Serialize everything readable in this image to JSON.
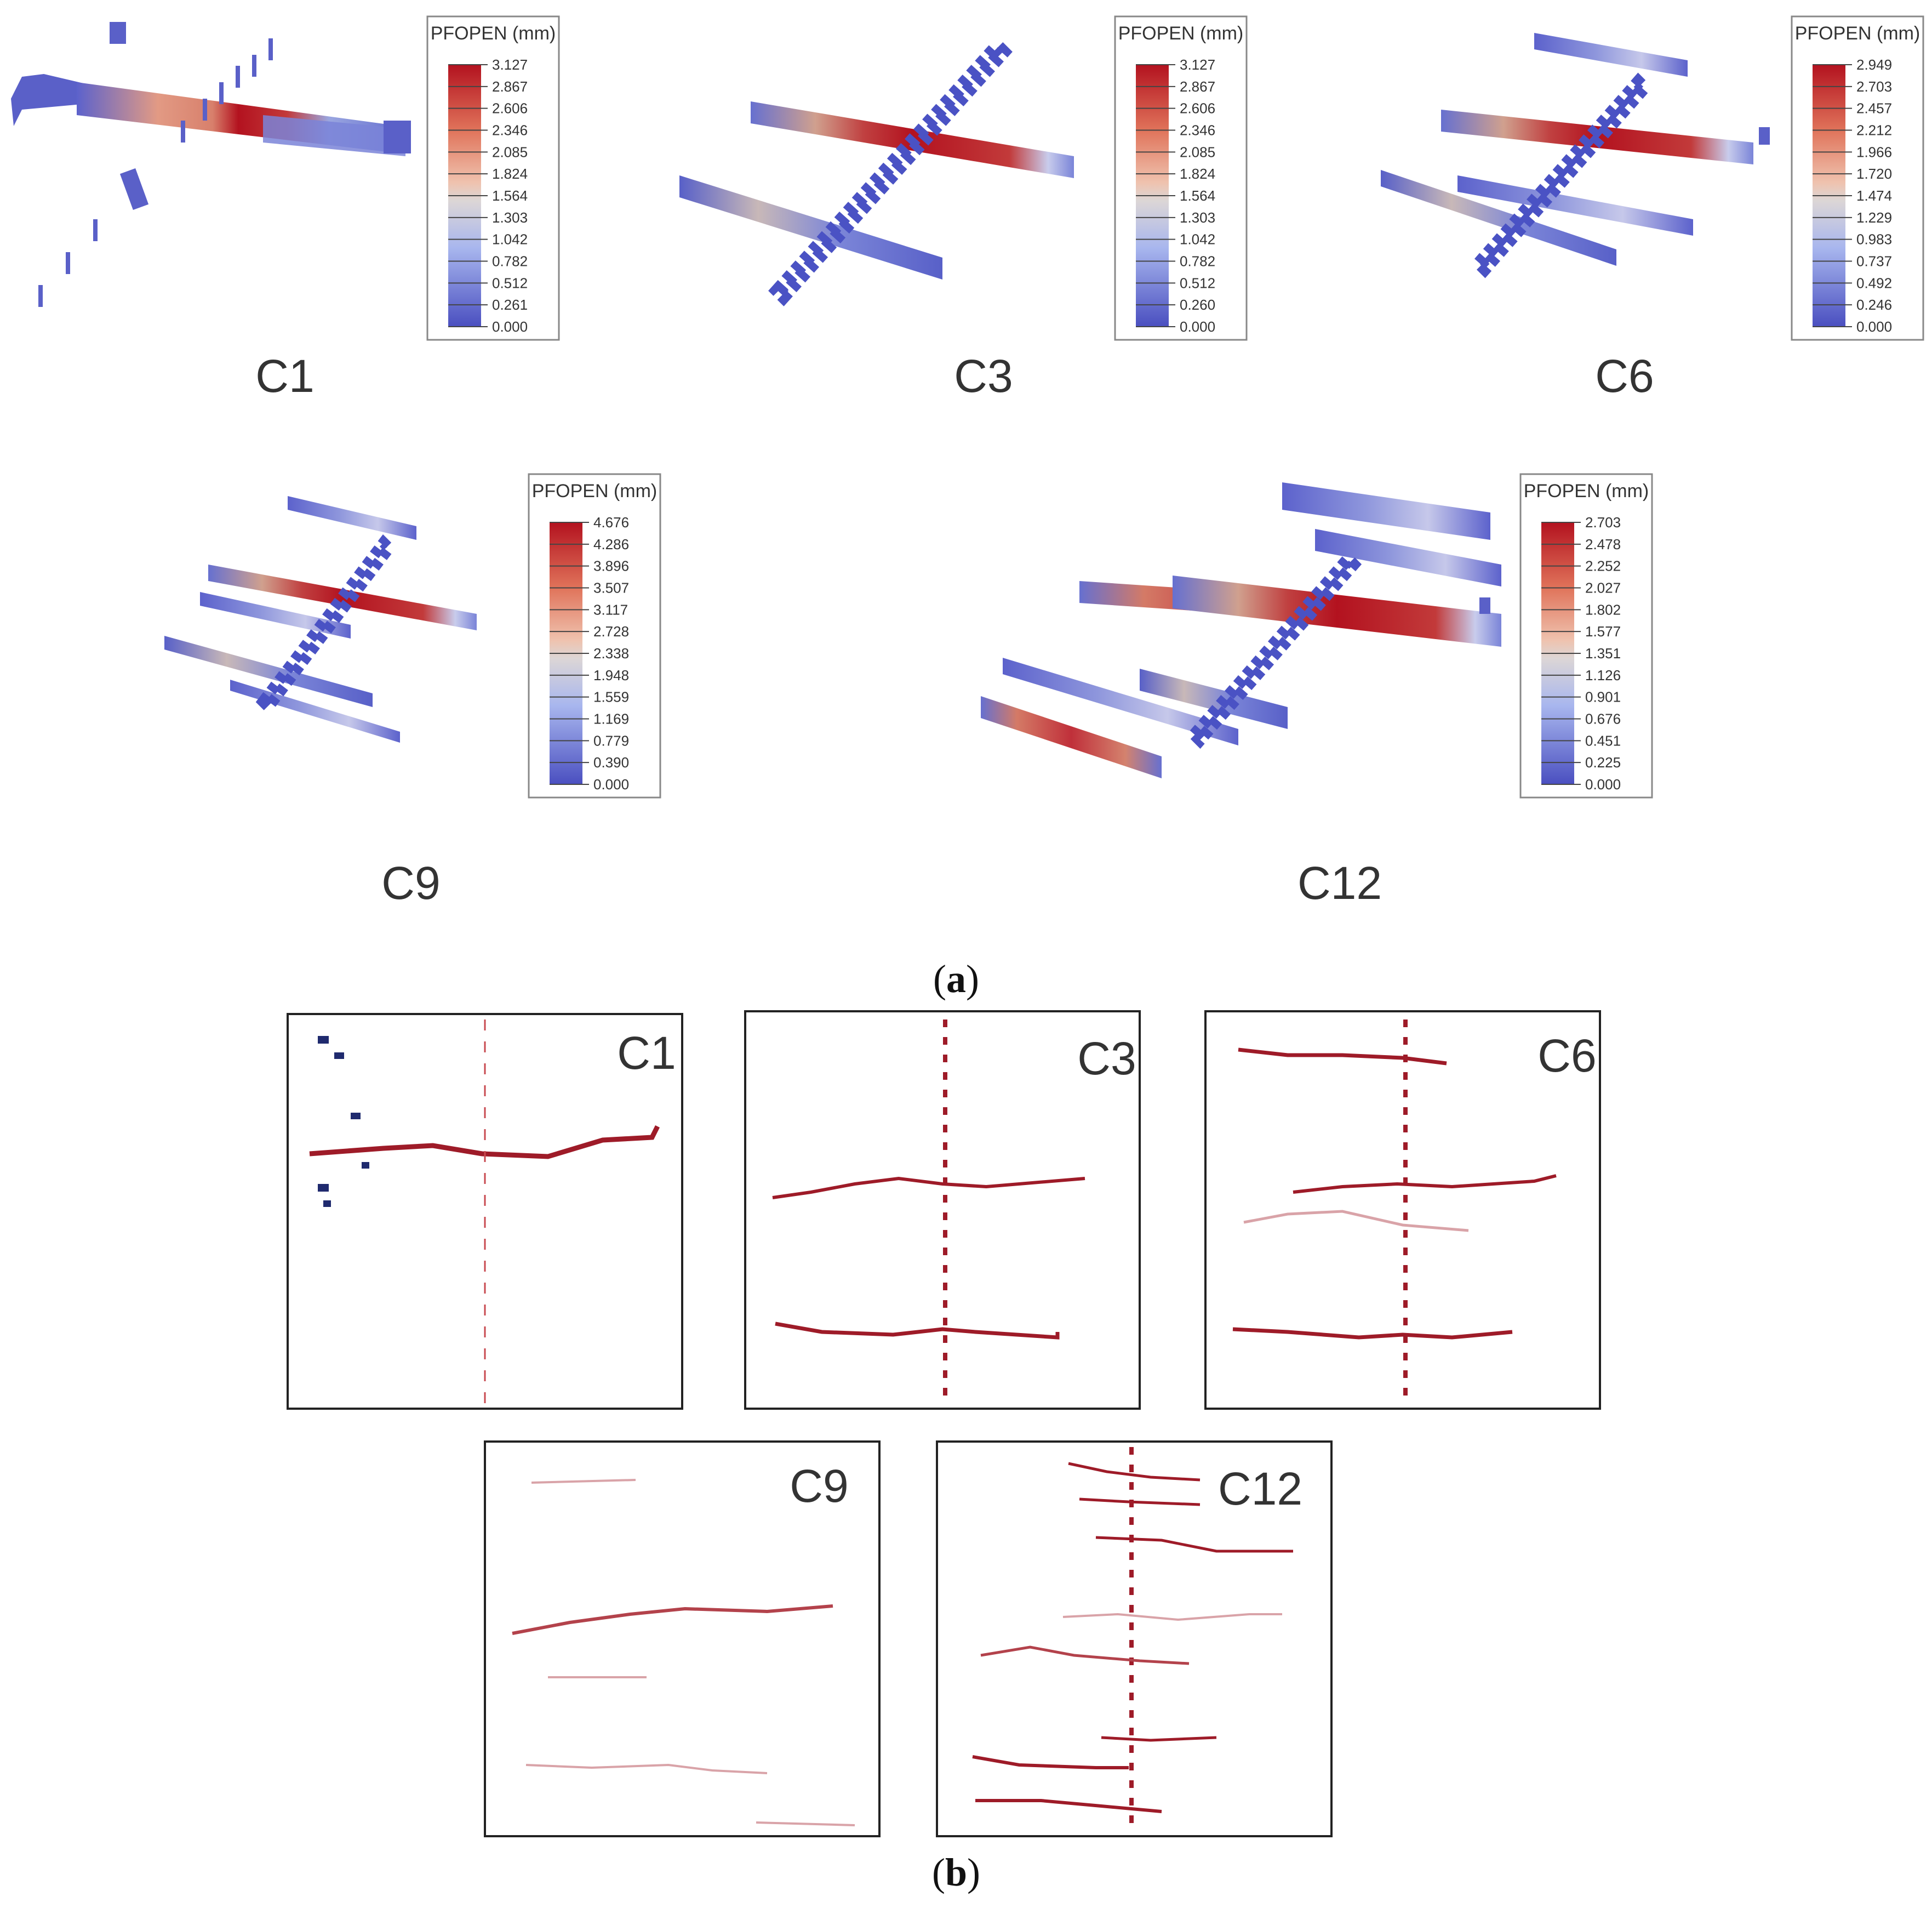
{
  "figure": {
    "part_a_label": "(a)",
    "part_a_letter": "a",
    "part_b_label": "(b)",
    "part_b_letter": "b"
  },
  "legend_title": "PFOPEN (mm)",
  "colors": {
    "high": "#b3121f",
    "mid": "#dcd6d6",
    "low": "#4a4fc0",
    "frame": "#222222",
    "trace": "#9e1b28",
    "label": "#333333"
  },
  "panels_3d": [
    {
      "case": "C1",
      "ticks": [
        "3.127",
        "2.867",
        "2.606",
        "2.346",
        "2.085",
        "1.824",
        "1.564",
        "1.303",
        "1.042",
        "0.782",
        "0.512",
        "0.261",
        "0.000"
      ]
    },
    {
      "case": "C3",
      "ticks": [
        "3.127",
        "2.867",
        "2.606",
        "2.346",
        "2.085",
        "1.824",
        "1.564",
        "1.303",
        "1.042",
        "0.782",
        "0.512",
        "0.260",
        "0.000"
      ]
    },
    {
      "case": "C6",
      "ticks": [
        "2.949",
        "2.703",
        "2.457",
        "2.212",
        "1.966",
        "1.720",
        "1.474",
        "1.229",
        "0.983",
        "0.737",
        "0.492",
        "0.246",
        "0.000"
      ]
    },
    {
      "case": "C9",
      "ticks": [
        "4.676",
        "4.286",
        "3.896",
        "3.507",
        "3.117",
        "2.728",
        "2.338",
        "1.948",
        "1.559",
        "1.169",
        "0.779",
        "0.390",
        "0.000"
      ]
    },
    {
      "case": "C12",
      "ticks": [
        "2.703",
        "2.478",
        "2.252",
        "2.027",
        "1.802",
        "1.577",
        "1.351",
        "1.126",
        "0.901",
        "0.676",
        "0.451",
        "0.225",
        "0.000"
      ]
    }
  ],
  "panels_2d": [
    {
      "case": "C1"
    },
    {
      "case": "C3"
    },
    {
      "case": "C6"
    },
    {
      "case": "C9"
    },
    {
      "case": "C12"
    }
  ]
}
